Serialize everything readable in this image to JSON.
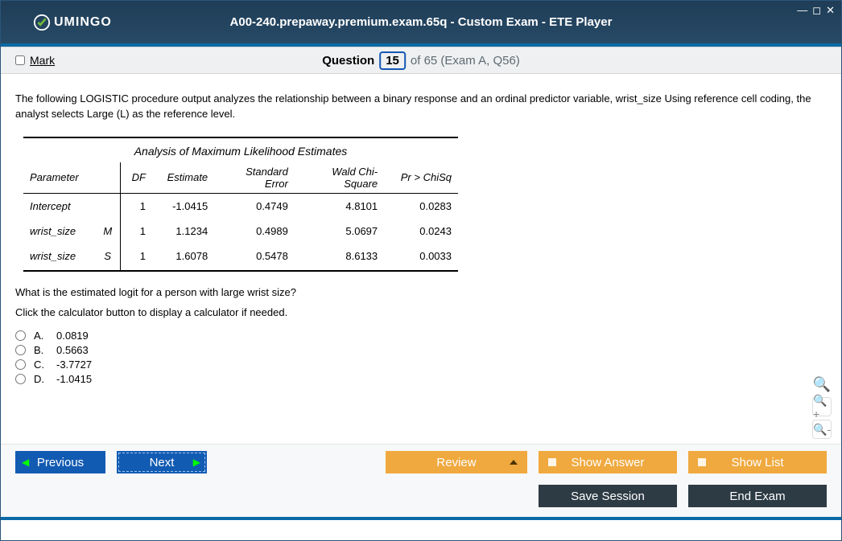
{
  "title": "A00-240.prepaway.premium.exam.65q - Custom Exam - ETE Player",
  "logo": "UMINGO",
  "mark_label": "Mark",
  "question": {
    "word": "Question",
    "num": "15",
    "rest": "of 65 (Exam A, Q56)"
  },
  "qtext": "The following LOGISTIC procedure output analyzes the relationship between a binary response and an ordinal predictor variable, wrist_size Using reference cell coding, the analyst selects Large (L) as the reference level.",
  "table": {
    "title": "Analysis of Maximum Likelihood Estimates",
    "headers": {
      "parameter": "Parameter",
      "df": "DF",
      "estimate": "Estimate",
      "se": "Standard Error",
      "wald": "Wald Chi-Square",
      "p": "Pr > ChiSq"
    },
    "rows": [
      {
        "param": "Intercept",
        "lvl": "",
        "df": "1",
        "est": "-1.0415",
        "se": "0.4749",
        "wald": "4.8101",
        "p": "0.0283"
      },
      {
        "param": "wrist_size",
        "lvl": "M",
        "df": "1",
        "est": "1.1234",
        "se": "0.4989",
        "wald": "5.0697",
        "p": "0.0243"
      },
      {
        "param": "wrist_size",
        "lvl": "S",
        "df": "1",
        "est": "1.6078",
        "se": "0.5478",
        "wald": "8.6133",
        "p": "0.0033"
      }
    ]
  },
  "subq1": "What is the estimated logit for a person with large wrist size?",
  "subq2": "Click the calculator button to display a calculator if needed.",
  "options": [
    {
      "l": "A.",
      "v": "0.0819"
    },
    {
      "l": "B.",
      "v": "0.5663"
    },
    {
      "l": "C.",
      "v": "-3.7727"
    },
    {
      "l": "D.",
      "v": "-1.0415"
    }
  ],
  "buttons": {
    "prev": "Previous",
    "next": "Next",
    "review": "Review",
    "show_answer": "Show Answer",
    "show_list": "Show List",
    "save": "Save Session",
    "end": "End Exam"
  },
  "colors": {
    "header_bg": "#274a66",
    "accent": "#0b6aa5",
    "blue_btn": "#125bb3",
    "orange_btn": "#f0a93f",
    "dark_btn": "#2d3b45"
  }
}
